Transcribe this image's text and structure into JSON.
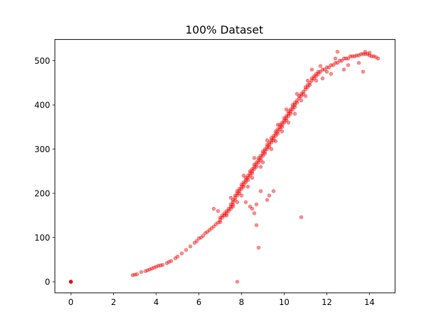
{
  "chart_data": {
    "type": "scatter",
    "title": "100% Dataset",
    "xlabel": "",
    "ylabel": "",
    "xlim": [
      -0.75,
      15.2
    ],
    "ylim": [
      -25,
      548
    ],
    "x_ticks": [
      0,
      2,
      4,
      6,
      8,
      10,
      12,
      14
    ],
    "y_ticks": [
      0,
      100,
      200,
      300,
      400,
      500
    ],
    "grid": false,
    "legend": "none",
    "marker_color": "#ff0000",
    "marker_edge_color": "#cc0000",
    "marker_opacity": 0.45,
    "series": [
      {
        "points": [
          [
            0.0,
            0
          ],
          [
            0.0,
            0
          ],
          [
            0.0,
            0
          ],
          [
            0.0,
            0
          ],
          [
            0.0,
            0
          ],
          [
            0.0,
            0
          ],
          [
            2.9,
            15
          ],
          [
            3.0,
            16
          ],
          [
            3.1,
            17
          ],
          [
            3.3,
            22
          ],
          [
            3.5,
            24
          ],
          [
            3.6,
            26
          ],
          [
            3.7,
            28
          ],
          [
            3.8,
            30
          ],
          [
            3.9,
            32
          ],
          [
            4.0,
            34
          ],
          [
            4.1,
            36
          ],
          [
            4.2,
            37
          ],
          [
            4.3,
            38
          ],
          [
            4.5,
            42
          ],
          [
            4.6,
            45
          ],
          [
            4.7,
            47
          ],
          [
            4.9,
            53
          ],
          [
            5.0,
            57
          ],
          [
            5.2,
            64
          ],
          [
            5.4,
            72
          ],
          [
            5.6,
            80
          ],
          [
            5.8,
            88
          ],
          [
            5.9,
            92
          ],
          [
            6.0,
            98
          ],
          [
            6.1,
            100
          ],
          [
            6.2,
            104
          ],
          [
            6.3,
            110
          ],
          [
            6.4,
            113
          ],
          [
            6.5,
            117
          ],
          [
            6.6,
            121
          ],
          [
            6.7,
            125
          ],
          [
            6.8,
            130
          ],
          [
            6.9,
            134
          ],
          [
            7.0,
            140
          ],
          [
            7.0,
            145
          ],
          [
            7.1,
            150
          ],
          [
            7.1,
            145
          ],
          [
            7.2,
            155
          ],
          [
            7.2,
            150
          ],
          [
            7.3,
            160
          ],
          [
            7.3,
            155
          ],
          [
            7.4,
            165
          ],
          [
            7.4,
            160
          ],
          [
            7.5,
            170
          ],
          [
            7.5,
            175
          ],
          [
            7.5,
            165
          ],
          [
            7.6,
            180
          ],
          [
            7.6,
            175
          ],
          [
            7.6,
            185
          ],
          [
            7.7,
            190
          ],
          [
            7.7,
            185
          ],
          [
            7.7,
            195
          ],
          [
            7.8,
            195
          ],
          [
            7.8,
            200
          ],
          [
            7.8,
            205
          ],
          [
            7.9,
            205
          ],
          [
            7.9,
            210
          ],
          [
            7.9,
            200
          ],
          [
            8.0,
            215
          ],
          [
            8.0,
            210
          ],
          [
            8.0,
            220
          ],
          [
            8.1,
            220
          ],
          [
            8.1,
            225
          ],
          [
            8.1,
            215
          ],
          [
            8.2,
            230
          ],
          [
            8.2,
            225
          ],
          [
            8.2,
            235
          ],
          [
            8.3,
            235
          ],
          [
            8.3,
            240
          ],
          [
            8.3,
            230
          ],
          [
            8.4,
            245
          ],
          [
            8.4,
            240
          ],
          [
            8.4,
            250
          ],
          [
            8.5,
            250
          ],
          [
            8.5,
            255
          ],
          [
            8.5,
            245
          ],
          [
            8.6,
            260
          ],
          [
            8.6,
            255
          ],
          [
            8.6,
            265
          ],
          [
            8.7,
            265
          ],
          [
            8.7,
            270
          ],
          [
            8.7,
            260
          ],
          [
            8.8,
            275
          ],
          [
            8.8,
            270
          ],
          [
            8.8,
            280
          ],
          [
            8.9,
            280
          ],
          [
            8.9,
            285
          ],
          [
            8.9,
            275
          ],
          [
            9.0,
            290
          ],
          [
            9.0,
            285
          ],
          [
            9.0,
            295
          ],
          [
            9.1,
            295
          ],
          [
            9.1,
            300
          ],
          [
            9.1,
            290
          ],
          [
            9.2,
            305
          ],
          [
            9.2,
            300
          ],
          [
            9.2,
            310
          ],
          [
            9.3,
            310
          ],
          [
            9.3,
            315
          ],
          [
            9.3,
            305
          ],
          [
            9.4,
            320
          ],
          [
            9.4,
            315
          ],
          [
            9.4,
            325
          ],
          [
            9.5,
            325
          ],
          [
            9.5,
            330
          ],
          [
            9.5,
            320
          ],
          [
            9.6,
            335
          ],
          [
            9.6,
            330
          ],
          [
            9.6,
            340
          ],
          [
            9.7,
            340
          ],
          [
            9.7,
            345
          ],
          [
            9.7,
            335
          ],
          [
            9.8,
            350
          ],
          [
            9.8,
            345
          ],
          [
            9.8,
            355
          ],
          [
            9.9,
            355
          ],
          [
            9.9,
            360
          ],
          [
            9.9,
            350
          ],
          [
            10.0,
            365
          ],
          [
            10.0,
            360
          ],
          [
            10.0,
            370
          ],
          [
            10.1,
            370
          ],
          [
            10.1,
            375
          ],
          [
            10.1,
            365
          ],
          [
            10.2,
            380
          ],
          [
            10.2,
            375
          ],
          [
            10.2,
            385
          ],
          [
            10.3,
            385
          ],
          [
            10.3,
            390
          ],
          [
            10.3,
            380
          ],
          [
            10.4,
            395
          ],
          [
            10.4,
            390
          ],
          [
            10.4,
            400
          ],
          [
            10.5,
            400
          ],
          [
            10.5,
            405
          ],
          [
            10.5,
            395
          ],
          [
            10.6,
            410
          ],
          [
            10.6,
            405
          ],
          [
            10.7,
            415
          ],
          [
            10.7,
            420
          ],
          [
            10.8,
            420
          ],
          [
            10.8,
            425
          ],
          [
            10.9,
            430
          ],
          [
            10.9,
            425
          ],
          [
            11.0,
            435
          ],
          [
            11.0,
            440
          ],
          [
            11.1,
            440
          ],
          [
            11.1,
            445
          ],
          [
            11.2,
            450
          ],
          [
            11.2,
            445
          ],
          [
            11.3,
            455
          ],
          [
            11.3,
            460
          ],
          [
            11.4,
            460
          ],
          [
            11.4,
            465
          ],
          [
            11.5,
            465
          ],
          [
            11.5,
            470
          ],
          [
            11.6,
            470
          ],
          [
            11.6,
            475
          ],
          [
            11.7,
            475
          ],
          [
            11.8,
            480
          ],
          [
            11.9,
            480
          ],
          [
            12.0,
            485
          ],
          [
            12.1,
            485
          ],
          [
            12.2,
            490
          ],
          [
            12.3,
            490
          ],
          [
            12.4,
            495
          ],
          [
            12.5,
            495
          ],
          [
            12.6,
            500
          ],
          [
            12.7,
            500
          ],
          [
            12.8,
            505
          ],
          [
            12.9,
            505
          ],
          [
            13.0,
            505
          ],
          [
            13.1,
            510
          ],
          [
            13.2,
            510
          ],
          [
            13.3,
            510
          ],
          [
            13.4,
            512
          ],
          [
            13.5,
            512
          ],
          [
            13.6,
            515
          ],
          [
            13.7,
            515
          ],
          [
            13.8,
            515
          ],
          [
            13.9,
            515
          ],
          [
            14.0,
            512
          ],
          [
            14.1,
            510
          ],
          [
            14.2,
            510
          ],
          [
            14.3,
            508
          ],
          [
            14.4,
            505
          ],
          [
            12.5,
            520
          ],
          [
            13.8,
            520
          ],
          [
            14.0,
            518
          ],
          [
            12.0,
            475
          ],
          [
            11.5,
            455
          ],
          [
            10.8,
            410
          ],
          [
            10.2,
            360
          ],
          [
            9.6,
            318
          ],
          [
            9.0,
            270
          ],
          [
            8.5,
            235
          ],
          [
            8.0,
            195
          ],
          [
            7.6,
            170
          ],
          [
            7.3,
            150
          ],
          [
            7.0,
            135
          ],
          [
            6.9,
            160
          ],
          [
            6.7,
            165
          ],
          [
            8.2,
            180
          ],
          [
            8.4,
            170
          ],
          [
            8.6,
            155
          ],
          [
            8.7,
            175
          ],
          [
            8.5,
            165
          ],
          [
            8.7,
            128
          ],
          [
            8.8,
            77
          ],
          [
            9.2,
            185
          ],
          [
            9.3,
            195
          ],
          [
            9.5,
            205
          ],
          [
            8.9,
            205
          ],
          [
            7.8,
            0
          ],
          [
            10.8,
            146
          ],
          [
            11.8,
            460
          ],
          [
            12.2,
            470
          ],
          [
            12.8,
            480
          ],
          [
            13.0,
            490
          ],
          [
            13.5,
            495
          ],
          [
            13.7,
            475
          ],
          [
            11.3,
            480
          ],
          [
            11.0,
            420
          ],
          [
            10.5,
            380
          ],
          [
            9.9,
            340
          ],
          [
            9.4,
            300
          ],
          [
            8.9,
            260
          ],
          [
            8.3,
            215
          ],
          [
            7.8,
            180
          ],
          [
            9.7,
            355
          ],
          [
            10.1,
            390
          ],
          [
            10.6,
            425
          ],
          [
            11.1,
            455
          ],
          [
            11.7,
            488
          ],
          [
            12.4,
            505
          ],
          [
            8.1,
            240
          ],
          [
            8.6,
            280
          ],
          [
            9.2,
            320
          ],
          [
            7.5,
            190
          ]
        ]
      }
    ]
  }
}
